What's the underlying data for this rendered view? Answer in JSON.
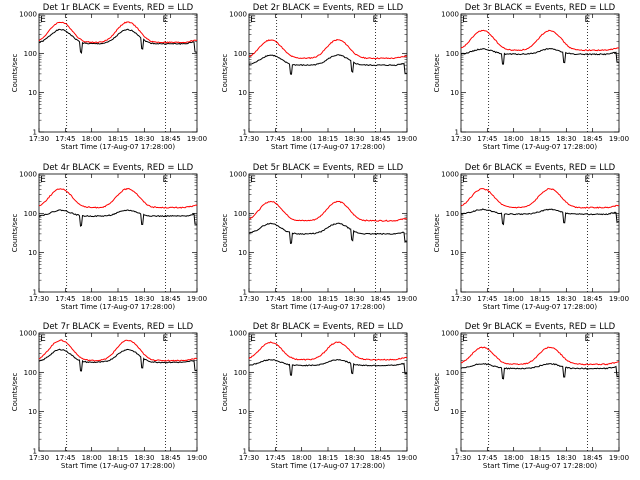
{
  "figure": {
    "background": "#ffffff",
    "colors": {
      "events": "#000000",
      "lld": "#ff0000",
      "axes": "#000000"
    }
  },
  "chart_data": [
    {
      "type": "line",
      "title": "Det 1r BLACK = Events, RED = LLD",
      "xlabel": "Start Time (17-Aug-07 17:28:00)",
      "ylabel": "Counts/sec",
      "x_ticks": [
        "17:30",
        "17:45",
        "18:00",
        "18:15",
        "18:30",
        "18:45",
        "19:00"
      ],
      "y_ticks": [
        "1",
        "10",
        "100",
        "1000"
      ],
      "yscale": "log",
      "ylim": [
        1,
        1000
      ],
      "x_range_minutes": [
        0,
        40
      ],
      "markers": [
        {
          "label": "E",
          "x_minute": 1
        },
        {
          "label": "E",
          "x_minute": 32
        }
      ],
      "dotted_vlines_minutes": [
        7,
        32
      ],
      "series": [
        {
          "name": "Events",
          "color": "#000000",
          "base": 175,
          "peak": 400,
          "peaks": [
            5.5,
            22.5
          ]
        },
        {
          "name": "LLD",
          "color": "#ff0000",
          "base": 190,
          "peak": 620,
          "peaks": [
            5.5,
            22.5
          ]
        }
      ]
    },
    {
      "type": "line",
      "title": "Det 2r BLACK = Events, RED = LLD",
      "xlabel": "Start Time (17-Aug-07 17:28:00)",
      "ylabel": "Counts/sec",
      "x_ticks": [
        "17:30",
        "17:45",
        "18:00",
        "18:15",
        "18:30",
        "18:45",
        "19:00"
      ],
      "y_ticks": [
        "1",
        "10",
        "100",
        "1000"
      ],
      "yscale": "log",
      "ylim": [
        1,
        1000
      ],
      "x_range_minutes": [
        0,
        40
      ],
      "markers": [
        {
          "label": "E",
          "x_minute": 1
        },
        {
          "label": "E",
          "x_minute": 32
        }
      ],
      "dotted_vlines_minutes": [
        7,
        32
      ],
      "series": [
        {
          "name": "Events",
          "color": "#000000",
          "base": 50,
          "peak": 90,
          "peaks": [
            5.5,
            22.5
          ]
        },
        {
          "name": "LLD",
          "color": "#ff0000",
          "base": 75,
          "peak": 220,
          "peaks": [
            5.5,
            22.5
          ]
        }
      ]
    },
    {
      "type": "line",
      "title": "Det 3r BLACK = Events, RED = LLD",
      "xlabel": "Start Time (17-Aug-07 17:28:00)",
      "ylabel": "Counts/sec",
      "x_ticks": [
        "17:30",
        "17:45",
        "18:00",
        "18:15",
        "18:30",
        "18:45",
        "19:00"
      ],
      "y_ticks": [
        "1",
        "10",
        "100",
        "1000"
      ],
      "yscale": "log",
      "ylim": [
        1,
        1000
      ],
      "x_range_minutes": [
        0,
        40
      ],
      "markers": [
        {
          "label": "E",
          "x_minute": 1
        },
        {
          "label": "E",
          "x_minute": 32
        }
      ],
      "dotted_vlines_minutes": [
        7,
        32
      ],
      "series": [
        {
          "name": "Events",
          "color": "#000000",
          "base": 95,
          "peak": 130,
          "peaks": [
            5.5,
            22.5
          ]
        },
        {
          "name": "LLD",
          "color": "#ff0000",
          "base": 120,
          "peak": 380,
          "peaks": [
            5.5,
            22.5
          ]
        }
      ]
    },
    {
      "type": "line",
      "title": "Det 4r BLACK = Events, RED = LLD",
      "xlabel": "Start Time (17-Aug-07 17:28:00)",
      "ylabel": "Counts/sec",
      "x_ticks": [
        "17:30",
        "17:45",
        "18:00",
        "18:15",
        "18:30",
        "18:45",
        "19:00"
      ],
      "y_ticks": [
        "1",
        "10",
        "100",
        "1000"
      ],
      "yscale": "log",
      "ylim": [
        1,
        1000
      ],
      "x_range_minutes": [
        0,
        40
      ],
      "markers": [
        {
          "label": "E",
          "x_minute": 1
        },
        {
          "label": "E",
          "x_minute": 32
        }
      ],
      "dotted_vlines_minutes": [
        7,
        32
      ],
      "series": [
        {
          "name": "Events",
          "color": "#000000",
          "base": 85,
          "peak": 120,
          "peaks": [
            5.5,
            22.5
          ]
        },
        {
          "name": "LLD",
          "color": "#ff0000",
          "base": 140,
          "peak": 420,
          "peaks": [
            5.5,
            22.5
          ]
        }
      ]
    },
    {
      "type": "line",
      "title": "Det 5r BLACK = Events, RED = LLD",
      "xlabel": "Start Time (17-Aug-07 17:28:00)",
      "ylabel": "Counts/sec",
      "x_ticks": [
        "17:30",
        "17:45",
        "18:00",
        "18:15",
        "18:30",
        "18:45",
        "19:00"
      ],
      "y_ticks": [
        "1",
        "10",
        "100",
        "1000"
      ],
      "yscale": "log",
      "ylim": [
        1,
        1000
      ],
      "x_range_minutes": [
        0,
        40
      ],
      "markers": [
        {
          "label": "E",
          "x_minute": 1
        },
        {
          "label": "E",
          "x_minute": 32
        }
      ],
      "dotted_vlines_minutes": [
        7,
        32
      ],
      "series": [
        {
          "name": "Events",
          "color": "#000000",
          "base": 30,
          "peak": 55,
          "peaks": [
            5.5,
            22.5
          ]
        },
        {
          "name": "LLD",
          "color": "#ff0000",
          "base": 65,
          "peak": 200,
          "peaks": [
            5.5,
            22.5
          ]
        }
      ]
    },
    {
      "type": "line",
      "title": "Det 6r BLACK = Events, RED = LLD",
      "xlabel": "Start Time (17-Aug-07 17:28:00)",
      "ylabel": "Counts/sec",
      "x_ticks": [
        "17:30",
        "17:45",
        "18:00",
        "18:15",
        "18:30",
        "18:45",
        "19:00"
      ],
      "y_ticks": [
        "1",
        "10",
        "100",
        "1000"
      ],
      "yscale": "log",
      "ylim": [
        1,
        1000
      ],
      "x_range_minutes": [
        0,
        40
      ],
      "markers": [
        {
          "label": "E",
          "x_minute": 1
        },
        {
          "label": "E",
          "x_minute": 32
        }
      ],
      "dotted_vlines_minutes": [
        7,
        32
      ],
      "series": [
        {
          "name": "Events",
          "color": "#000000",
          "base": 95,
          "peak": 125,
          "peaks": [
            5.5,
            22.5
          ]
        },
        {
          "name": "LLD",
          "color": "#ff0000",
          "base": 140,
          "peak": 420,
          "peaks": [
            5.5,
            22.5
          ]
        }
      ]
    },
    {
      "type": "line",
      "title": "Det 7r BLACK = Events, RED = LLD",
      "xlabel": "Start Time (17-Aug-07 17:28:00)",
      "ylabel": "Counts/sec",
      "x_ticks": [
        "17:30",
        "17:45",
        "18:00",
        "18:15",
        "18:30",
        "18:45",
        "19:00"
      ],
      "y_ticks": [
        "1",
        "10",
        "100",
        "1000"
      ],
      "yscale": "log",
      "ylim": [
        1,
        1000
      ],
      "x_range_minutes": [
        0,
        40
      ],
      "markers": [
        {
          "label": "E",
          "x_minute": 1
        },
        {
          "label": "E",
          "x_minute": 32
        }
      ],
      "dotted_vlines_minutes": [
        7,
        32
      ],
      "series": [
        {
          "name": "Events",
          "color": "#000000",
          "base": 180,
          "peak": 380,
          "peaks": [
            5.5,
            22.5
          ]
        },
        {
          "name": "LLD",
          "color": "#ff0000",
          "base": 200,
          "peak": 650,
          "peaks": [
            5.5,
            22.5
          ]
        }
      ]
    },
    {
      "type": "line",
      "title": "Det 8r BLACK = Events, RED = LLD",
      "xlabel": "Start Time (17-Aug-07 17:28:00)",
      "ylabel": "Counts/sec",
      "x_ticks": [
        "17:30",
        "17:45",
        "18:00",
        "18:15",
        "18:30",
        "18:45",
        "19:00"
      ],
      "y_ticks": [
        "1",
        "10",
        "100",
        "1000"
      ],
      "yscale": "log",
      "ylim": [
        1,
        1000
      ],
      "x_range_minutes": [
        0,
        40
      ],
      "markers": [
        {
          "label": "E",
          "x_minute": 1
        },
        {
          "label": "E",
          "x_minute": 32
        }
      ],
      "dotted_vlines_minutes": [
        7,
        32
      ],
      "series": [
        {
          "name": "Events",
          "color": "#000000",
          "base": 150,
          "peak": 210,
          "peaks": [
            5.5,
            22.5
          ]
        },
        {
          "name": "LLD",
          "color": "#ff0000",
          "base": 210,
          "peak": 580,
          "peaks": [
            5.5,
            22.5
          ]
        }
      ]
    },
    {
      "type": "line",
      "title": "Det 9r BLACK = Events, RED = LLD",
      "xlabel": "Start Time (17-Aug-07 17:28:00)",
      "ylabel": "Counts/sec",
      "x_ticks": [
        "17:30",
        "17:45",
        "18:00",
        "18:15",
        "18:30",
        "18:45",
        "19:00"
      ],
      "y_ticks": [
        "1",
        "10",
        "100",
        "1000"
      ],
      "yscale": "log",
      "ylim": [
        1,
        1000
      ],
      "x_range_minutes": [
        0,
        40
      ],
      "markers": [
        {
          "label": "E",
          "x_minute": 1
        },
        {
          "label": "E",
          "x_minute": 32
        }
      ],
      "dotted_vlines_minutes": [
        7,
        32
      ],
      "series": [
        {
          "name": "Events",
          "color": "#000000",
          "base": 125,
          "peak": 165,
          "peaks": [
            5.5,
            22.5
          ]
        },
        {
          "name": "LLD",
          "color": "#ff0000",
          "base": 160,
          "peak": 430,
          "peaks": [
            5.5,
            22.5
          ]
        }
      ]
    }
  ]
}
